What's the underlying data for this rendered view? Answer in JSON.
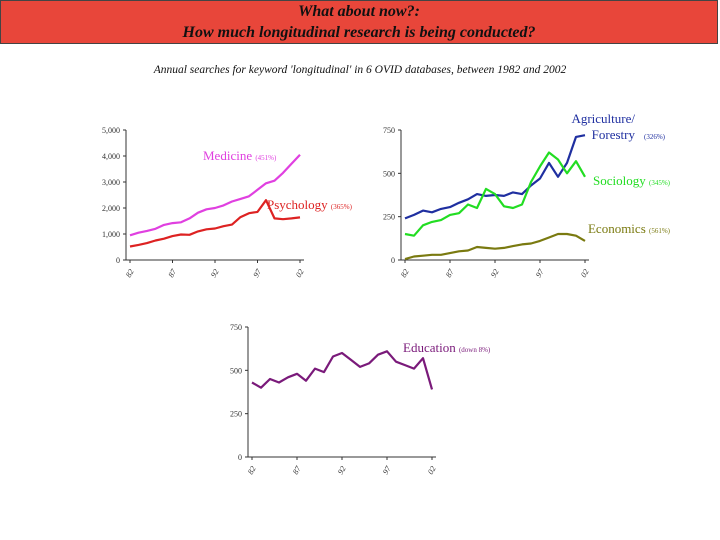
{
  "header": {
    "line1": "What about now?:",
    "line2": "How much longitudinal research is being conducted?"
  },
  "subtitle": "Annual searches for keyword 'longitudinal' in 6 OVID databases, between 1982 and 2002",
  "colors": {
    "header_bg": "#e8463a",
    "medicine": "#e040e0",
    "psychology": "#dd2222",
    "agriculture": "#1f2fa0",
    "sociology": "#22dd22",
    "economics": "#7a7a10",
    "education": "#7a1a7a"
  },
  "chart_data": [
    {
      "type": "line",
      "x": [
        1982,
        1983,
        1984,
        1985,
        1986,
        1987,
        1988,
        1989,
        1990,
        1991,
        1992,
        1993,
        1994,
        1995,
        1996,
        1997,
        1998,
        1999,
        2000,
        2001,
        2002
      ],
      "ylim": [
        0,
        5000
      ],
      "yticks": [
        "0",
        "1,000",
        "2,000",
        "3,000",
        "4,000",
        "5,000"
      ],
      "xticks": [
        "82",
        "87",
        "92",
        "97",
        "02"
      ],
      "series": [
        {
          "name": "Medicine",
          "label_pct": "(451%)",
          "values": [
            950,
            1050,
            1120,
            1200,
            1350,
            1420,
            1450,
            1600,
            1820,
            1950,
            2000,
            2100,
            2250,
            2350,
            2450,
            2700,
            2950,
            3050,
            3350,
            3700,
            4050
          ]
        },
        {
          "name": "Psychology",
          "label_pct": "(365%)",
          "values": [
            520,
            580,
            650,
            750,
            820,
            920,
            980,
            970,
            1100,
            1180,
            1210,
            1300,
            1360,
            1650,
            1800,
            1850,
            2300,
            1600,
            1570,
            1600,
            1640
          ]
        }
      ]
    },
    {
      "type": "line",
      "x": [
        1982,
        1983,
        1984,
        1985,
        1986,
        1987,
        1988,
        1989,
        1990,
        1991,
        1992,
        1993,
        1994,
        1995,
        1996,
        1997,
        1998,
        1999,
        2000,
        2001,
        2002
      ],
      "ylim": [
        0,
        750
      ],
      "yticks": [
        "0",
        "250",
        "500",
        "750"
      ],
      "xticks": [
        "82",
        "87",
        "92",
        "97",
        "02"
      ],
      "series": [
        {
          "name": "Agriculture/ Forestry",
          "name_lines": [
            "Agriculture/",
            "Forestry"
          ],
          "label_pct": "(326%)",
          "values": [
            240,
            260,
            285,
            275,
            295,
            305,
            330,
            350,
            380,
            370,
            375,
            370,
            390,
            380,
            430,
            470,
            560,
            480,
            560,
            710,
            720
          ]
        },
        {
          "name": "Sociology",
          "label_pct": "(345%)",
          "values": [
            150,
            140,
            200,
            220,
            230,
            260,
            270,
            320,
            300,
            410,
            380,
            310,
            300,
            320,
            450,
            540,
            620,
            580,
            500,
            570,
            480
          ]
        },
        {
          "name": "Economics",
          "label_pct": "(561%)",
          "values": [
            5,
            20,
            25,
            30,
            30,
            40,
            50,
            55,
            75,
            70,
            65,
            70,
            80,
            90,
            95,
            110,
            130,
            150,
            150,
            140,
            110
          ]
        }
      ]
    },
    {
      "type": "line",
      "x": [
        1982,
        1983,
        1984,
        1985,
        1986,
        1987,
        1988,
        1989,
        1990,
        1991,
        1992,
        1993,
        1994,
        1995,
        1996,
        1997,
        1998,
        1999,
        2000,
        2001,
        2002
      ],
      "ylim": [
        0,
        750
      ],
      "yticks": [
        "0",
        "250",
        "500",
        "750"
      ],
      "xticks": [
        "82",
        "87",
        "92",
        "97",
        "02"
      ],
      "series": [
        {
          "name": "Education",
          "label_pct": "(down 8%)",
          "values": [
            430,
            400,
            450,
            430,
            460,
            480,
            440,
            510,
            490,
            580,
            600,
            560,
            520,
            540,
            590,
            610,
            550,
            530,
            510,
            570,
            390
          ]
        }
      ]
    }
  ]
}
